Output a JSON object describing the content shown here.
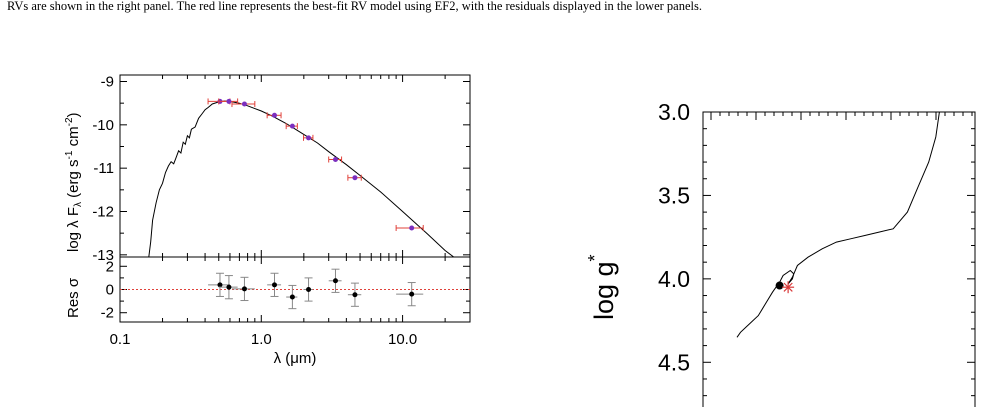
{
  "caption": {
    "line1": "RVs are shown in the right panel. The red line represents the best-fit RV model using EF2, with the residuals displayed in the lower panels."
  },
  "chart_data": [
    {
      "type": "scatter",
      "panel": "sed",
      "ylabel_main": "log λ F",
      "ylabel_sub": "λ",
      "ylabel_units": "(erg s",
      "ylabel_exp1": "-1",
      "ylabel_mid": " cm",
      "ylabel_exp2": "-2",
      "ylabel_end": ")",
      "res_ylabel": "Res σ",
      "xlabel": "λ (μm)",
      "x_scale": "log",
      "xlim": [
        0.1,
        30
      ],
      "ylim": [
        -13.05,
        -8.85
      ],
      "res_ylim": [
        -2.8,
        2.8
      ],
      "xticks": [
        "0.1",
        "1.0",
        "10.0"
      ],
      "yticks": [
        "-9",
        "-10",
        "-11",
        "-12",
        "-13"
      ],
      "res_yticks": [
        "2",
        "0",
        "-2"
      ],
      "model": [
        [
          0.16,
          -13.05
        ],
        [
          0.165,
          -12.7
        ],
        [
          0.17,
          -12.2
        ],
        [
          0.18,
          -11.8
        ],
        [
          0.19,
          -11.5
        ],
        [
          0.2,
          -11.35
        ],
        [
          0.21,
          -11.1
        ],
        [
          0.22,
          -10.95
        ],
        [
          0.23,
          -10.85
        ],
        [
          0.24,
          -10.9
        ],
        [
          0.25,
          -10.75
        ],
        [
          0.26,
          -10.6
        ],
        [
          0.27,
          -10.65
        ],
        [
          0.28,
          -10.4
        ],
        [
          0.29,
          -10.45
        ],
        [
          0.3,
          -10.25
        ],
        [
          0.31,
          -10.3
        ],
        [
          0.32,
          -10.1
        ],
        [
          0.34,
          -10.05
        ],
        [
          0.36,
          -9.85
        ],
        [
          0.38,
          -9.75
        ],
        [
          0.4,
          -9.65
        ],
        [
          0.42,
          -9.6
        ],
        [
          0.45,
          -9.52
        ],
        [
          0.5,
          -9.47
        ],
        [
          0.55,
          -9.45
        ],
        [
          0.6,
          -9.46
        ],
        [
          0.7,
          -9.5
        ],
        [
          0.8,
          -9.56
        ],
        [
          1.0,
          -9.68
        ],
        [
          1.2,
          -9.8
        ],
        [
          1.5,
          -9.97
        ],
        [
          2.0,
          -10.22
        ],
        [
          2.5,
          -10.42
        ],
        [
          3.0,
          -10.62
        ],
        [
          4.0,
          -10.92
        ],
        [
          5.0,
          -11.17
        ],
        [
          7.0,
          -11.55
        ],
        [
          10.0,
          -12.0
        ],
        [
          15.0,
          -12.52
        ],
        [
          20.0,
          -12.9
        ],
        [
          23.0,
          -13.05
        ]
      ],
      "points": [
        {
          "x": 0.51,
          "y": -9.46,
          "xerr_lo": 0.42,
          "xerr_hi": 0.6,
          "res": 0.4,
          "res_err": 1.0
        },
        {
          "x": 0.59,
          "y": -9.46,
          "xerr_lo": 0.5,
          "xerr_hi": 0.68,
          "res": 0.2,
          "res_err": 1.0
        },
        {
          "x": 0.76,
          "y": -9.52,
          "xerr_lo": 0.62,
          "xerr_hi": 0.9,
          "res": 0.05,
          "res_err": 1.0
        },
        {
          "x": 1.24,
          "y": -9.78,
          "xerr_lo": 1.1,
          "xerr_hi": 1.38,
          "res": 0.4,
          "res_err": 1.0
        },
        {
          "x": 1.66,
          "y": -10.03,
          "xerr_lo": 1.5,
          "xerr_hi": 1.8,
          "res": -0.65,
          "res_err": 1.0
        },
        {
          "x": 2.16,
          "y": -10.3,
          "xerr_lo": 1.99,
          "xerr_hi": 2.32,
          "res": 0.0,
          "res_err": 1.0
        },
        {
          "x": 3.35,
          "y": -10.8,
          "xerr_lo": 3.0,
          "xerr_hi": 3.7,
          "res": 0.75,
          "res_err": 1.0
        },
        {
          "x": 4.6,
          "y": -11.22,
          "xerr_lo": 4.1,
          "xerr_hi": 5.1,
          "res": -0.45,
          "res_err": 1.0
        },
        {
          "x": 11.6,
          "y": -12.38,
          "xerr_lo": 9.0,
          "xerr_hi": 14.0,
          "res": -0.4,
          "res_err": 1.0
        }
      ],
      "colors": {
        "point": "#7b2fbf",
        "xerr": "#e0413a",
        "model": "#000000",
        "residual_zero": "#e0413a"
      }
    },
    {
      "type": "line",
      "panel": "hr",
      "ylabel_main": "log g",
      "ylabel_sub": "*",
      "ylim": [
        3.0,
        4.75
      ],
      "yticks": [
        "3.0",
        "3.5",
        "4.0",
        "4.5"
      ],
      "track": [
        [
          0.0,
          4.35
        ],
        [
          0.05,
          4.32
        ],
        [
          0.15,
          4.28
        ],
        [
          0.3,
          4.22
        ],
        [
          0.4,
          4.15
        ],
        [
          0.5,
          4.08
        ],
        [
          0.55,
          4.05
        ],
        [
          0.6,
          4.02
        ],
        [
          0.65,
          3.98
        ],
        [
          0.75,
          3.95
        ],
        [
          0.8,
          3.97
        ],
        [
          0.78,
          4.0
        ],
        [
          0.72,
          4.03
        ],
        [
          0.72,
          4.03
        ],
        [
          0.78,
          3.99
        ],
        [
          0.85,
          3.92
        ],
        [
          1.0,
          3.87
        ],
        [
          1.2,
          3.82
        ],
        [
          1.4,
          3.78
        ],
        [
          1.6,
          3.76
        ],
        [
          1.8,
          3.74
        ],
        [
          2.0,
          3.72
        ],
        [
          2.2,
          3.7
        ],
        [
          2.4,
          3.6
        ],
        [
          2.55,
          3.45
        ],
        [
          2.7,
          3.3
        ],
        [
          2.8,
          3.15
        ],
        [
          2.85,
          3.0
        ]
      ],
      "star_point": {
        "x": 0.6,
        "y": 4.04
      },
      "star_marker": {
        "x": 0.72,
        "y": 4.05
      },
      "colors": {
        "track": "#000000",
        "point": "#000000",
        "marker": "#d93a3a"
      }
    }
  ]
}
